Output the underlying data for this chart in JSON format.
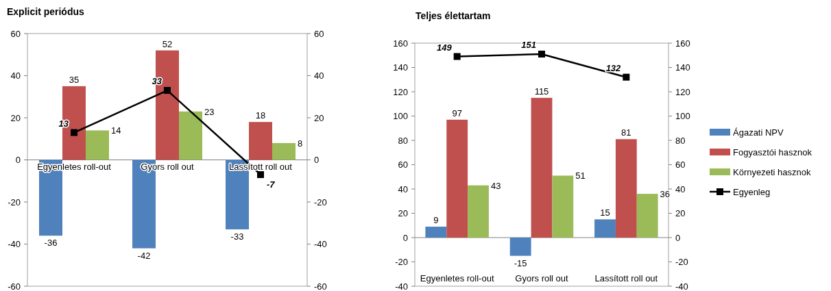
{
  "chart_data": [
    {
      "type": "bar",
      "title": "Explicit periódus",
      "categories": [
        "Egyenletes roll-out",
        "Gyors roll out",
        "Lassított roll out"
      ],
      "series": [
        {
          "color": "#4f81bd",
          "values": [
            -36,
            -42,
            -33
          ]
        },
        {
          "color": "#c0504d",
          "values": [
            35,
            52,
            18
          ]
        },
        {
          "color": "#9bbb59",
          "values": [
            14,
            23,
            8
          ]
        },
        {
          "type": "line",
          "color": "#000000",
          "marker": "square",
          "values": [
            13,
            33,
            -7
          ]
        }
      ],
      "ylim": [
        -60,
        60
      ],
      "yticks": [
        -60,
        -40,
        -20,
        0,
        20,
        40,
        60
      ],
      "y2lim": [
        -60,
        60
      ],
      "y2ticks": [
        -60,
        -40,
        -20,
        0,
        20,
        40,
        60
      ],
      "data_labels": true,
      "legend": false
    },
    {
      "type": "bar",
      "title": "Teljes élettartam",
      "categories": [
        "Egyenletes roll-out",
        "Gyors roll out",
        "Lassított roll out"
      ],
      "series": [
        {
          "name": "Ágazati NPV",
          "color": "#4f81bd",
          "values": [
            9,
            -15,
            15
          ]
        },
        {
          "name": "Fogyasztói hasznok",
          "color": "#c0504d",
          "values": [
            97,
            115,
            81
          ]
        },
        {
          "name": "Környezeti hasznok",
          "color": "#9bbb59",
          "values": [
            43,
            51,
            36
          ]
        },
        {
          "name": "Egyenleg",
          "type": "line",
          "color": "#000000",
          "marker": "square",
          "values": [
            149,
            151,
            132
          ]
        }
      ],
      "ylim": [
        -40,
        160
      ],
      "yticks": [
        -40,
        -20,
        0,
        20,
        40,
        60,
        80,
        100,
        120,
        140,
        160
      ],
      "y2lim": [
        -40,
        160
      ],
      "y2ticks": [
        -40,
        -20,
        0,
        20,
        40,
        60,
        80,
        100,
        120,
        140,
        160
      ],
      "data_labels": true,
      "legend": "right"
    }
  ]
}
